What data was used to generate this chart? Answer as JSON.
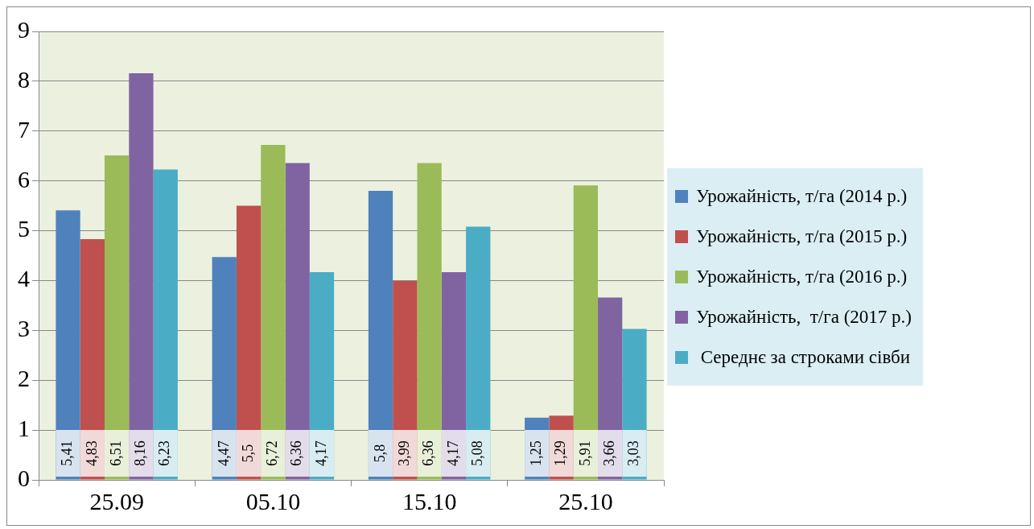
{
  "chart_data": {
    "type": "bar",
    "categories": [
      "25.09",
      "05.10",
      "15.10",
      "25.10"
    ],
    "series": [
      {
        "name": "Урожайність, т/га (2014 р.)",
        "color": "#4f81bd",
        "values": [
          5.41,
          4.47,
          5.8,
          1.25
        ],
        "value_labels": [
          "5,41",
          "4,47",
          "5,8",
          "1,25"
        ]
      },
      {
        "name": "Урожайність, т/га (2015 р.)",
        "color": "#c0504d",
        "values": [
          4.83,
          5.5,
          3.99,
          1.29
        ],
        "value_labels": [
          "4,83",
          "5,5",
          "3,99",
          "1,29"
        ]
      },
      {
        "name": "Урожайність, т/га (2016 р.)",
        "color": "#9bbb59",
        "values": [
          6.51,
          6.72,
          6.36,
          5.91
        ],
        "value_labels": [
          "6,51",
          "6,72",
          "6,36",
          "5,91"
        ]
      },
      {
        "name": "Урожайність,  т/га (2017 р.)",
        "color": "#8064a2",
        "values": [
          8.16,
          6.36,
          4.17,
          3.66
        ],
        "value_labels": [
          "8,16",
          "6,36",
          "4,17",
          "3,66"
        ]
      },
      {
        "name": " Середнє за строками сівби",
        "color": "#4bacc6",
        "values": [
          6.23,
          4.17,
          5.08,
          3.03
        ],
        "value_labels": [
          "6,23",
          "4,17",
          "5,08",
          "3,03"
        ]
      }
    ],
    "ylim": [
      0,
      9
    ],
    "yticks": [
      0,
      1,
      2,
      3,
      4,
      5,
      6,
      7,
      8,
      9
    ],
    "grid": "y",
    "legend": "right"
  }
}
